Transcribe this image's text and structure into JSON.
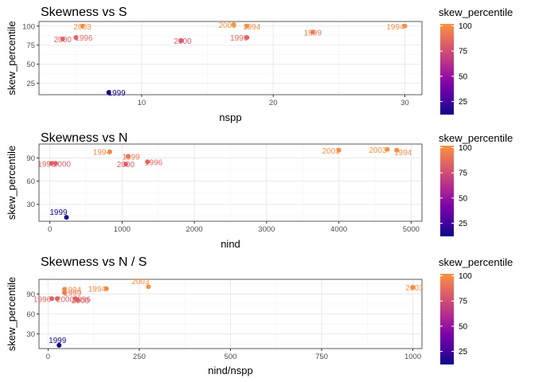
{
  "legend": {
    "title": "skew_percentile",
    "range": [
      12,
      102
    ],
    "ticks": [
      25,
      50,
      75,
      100
    ],
    "colors": [
      "#0d0887",
      "#4b03a1",
      "#7d03a8",
      "#a82296",
      "#cb4679",
      "#e56b5d",
      "#f89441"
    ]
  },
  "chart_data": [
    {
      "type": "scatter",
      "title": "Skewness vs S",
      "xlabel": "nspp",
      "ylabel": "skew_percentile",
      "xlim": [
        2.2,
        31.3
      ],
      "ylim": [
        10,
        106
      ],
      "xticks": [
        10,
        20,
        30
      ],
      "yticks": [
        25,
        50,
        75,
        100
      ],
      "points": [
        {
          "x": 7.5,
          "y": 13,
          "label": "1999"
        },
        {
          "x": 4.0,
          "y": 83,
          "label": "2000"
        },
        {
          "x": 5.0,
          "y": 85,
          "label": "1996"
        },
        {
          "x": 5.5,
          "y": 100,
          "label": "2003"
        },
        {
          "x": 13.0,
          "y": 81,
          "label": "2000"
        },
        {
          "x": 17.0,
          "y": 102,
          "label": "2003"
        },
        {
          "x": 18.0,
          "y": 100,
          "label": "1994"
        },
        {
          "x": 18.0,
          "y": 85,
          "label": "1996"
        },
        {
          "x": 23.0,
          "y": 92,
          "label": "1999"
        },
        {
          "x": 30.0,
          "y": 100,
          "label": "1994"
        }
      ]
    },
    {
      "type": "scatter",
      "title": "Skewness vs N",
      "xlabel": "nind",
      "ylabel": "skew_percentile",
      "xlim": [
        -150,
        5150
      ],
      "ylim": [
        8,
        108
      ],
      "xticks": [
        0,
        1000,
        2000,
        3000,
        4000,
        5000
      ],
      "yticks": [
        30,
        60,
        90
      ],
      "points": [
        {
          "x": 230,
          "y": 13,
          "label": "1999"
        },
        {
          "x": 20,
          "y": 83,
          "label": "1996"
        },
        {
          "x": 80,
          "y": 83,
          "label": "2000"
        },
        {
          "x": 830,
          "y": 98,
          "label": "1994"
        },
        {
          "x": 1080,
          "y": 92,
          "label": "1999"
        },
        {
          "x": 1050,
          "y": 82,
          "label": "2000"
        },
        {
          "x": 1350,
          "y": 85,
          "label": "1996"
        },
        {
          "x": 4000,
          "y": 100,
          "label": "2003"
        },
        {
          "x": 4670,
          "y": 101,
          "label": "2003"
        },
        {
          "x": 4800,
          "y": 100,
          "label": "1994"
        }
      ]
    },
    {
      "type": "scatter",
      "title": "Skewness vs N / S",
      "xlabel": "nind/nspp",
      "ylabel": "skew_percentile",
      "xlim": [
        -25,
        1025
      ],
      "ylim": [
        8,
        112
      ],
      "xticks": [
        0,
        250,
        500,
        750,
        1000
      ],
      "yticks": [
        30,
        60,
        90
      ],
      "points": [
        {
          "x": 30,
          "y": 13,
          "label": "1999"
        },
        {
          "x": 10,
          "y": 83,
          "label": "1996"
        },
        {
          "x": 25,
          "y": 83,
          "label": "2000"
        },
        {
          "x": 45,
          "y": 92,
          "label": "1999"
        },
        {
          "x": 45,
          "y": 97,
          "label": "1994"
        },
        {
          "x": 75,
          "y": 83,
          "label": "1996"
        },
        {
          "x": 80,
          "y": 81,
          "label": "2000"
        },
        {
          "x": 160,
          "y": 98,
          "label": "1994"
        },
        {
          "x": 275,
          "y": 101,
          "label": "2003"
        },
        {
          "x": 1000,
          "y": 100,
          "label": "2003"
        }
      ]
    }
  ]
}
